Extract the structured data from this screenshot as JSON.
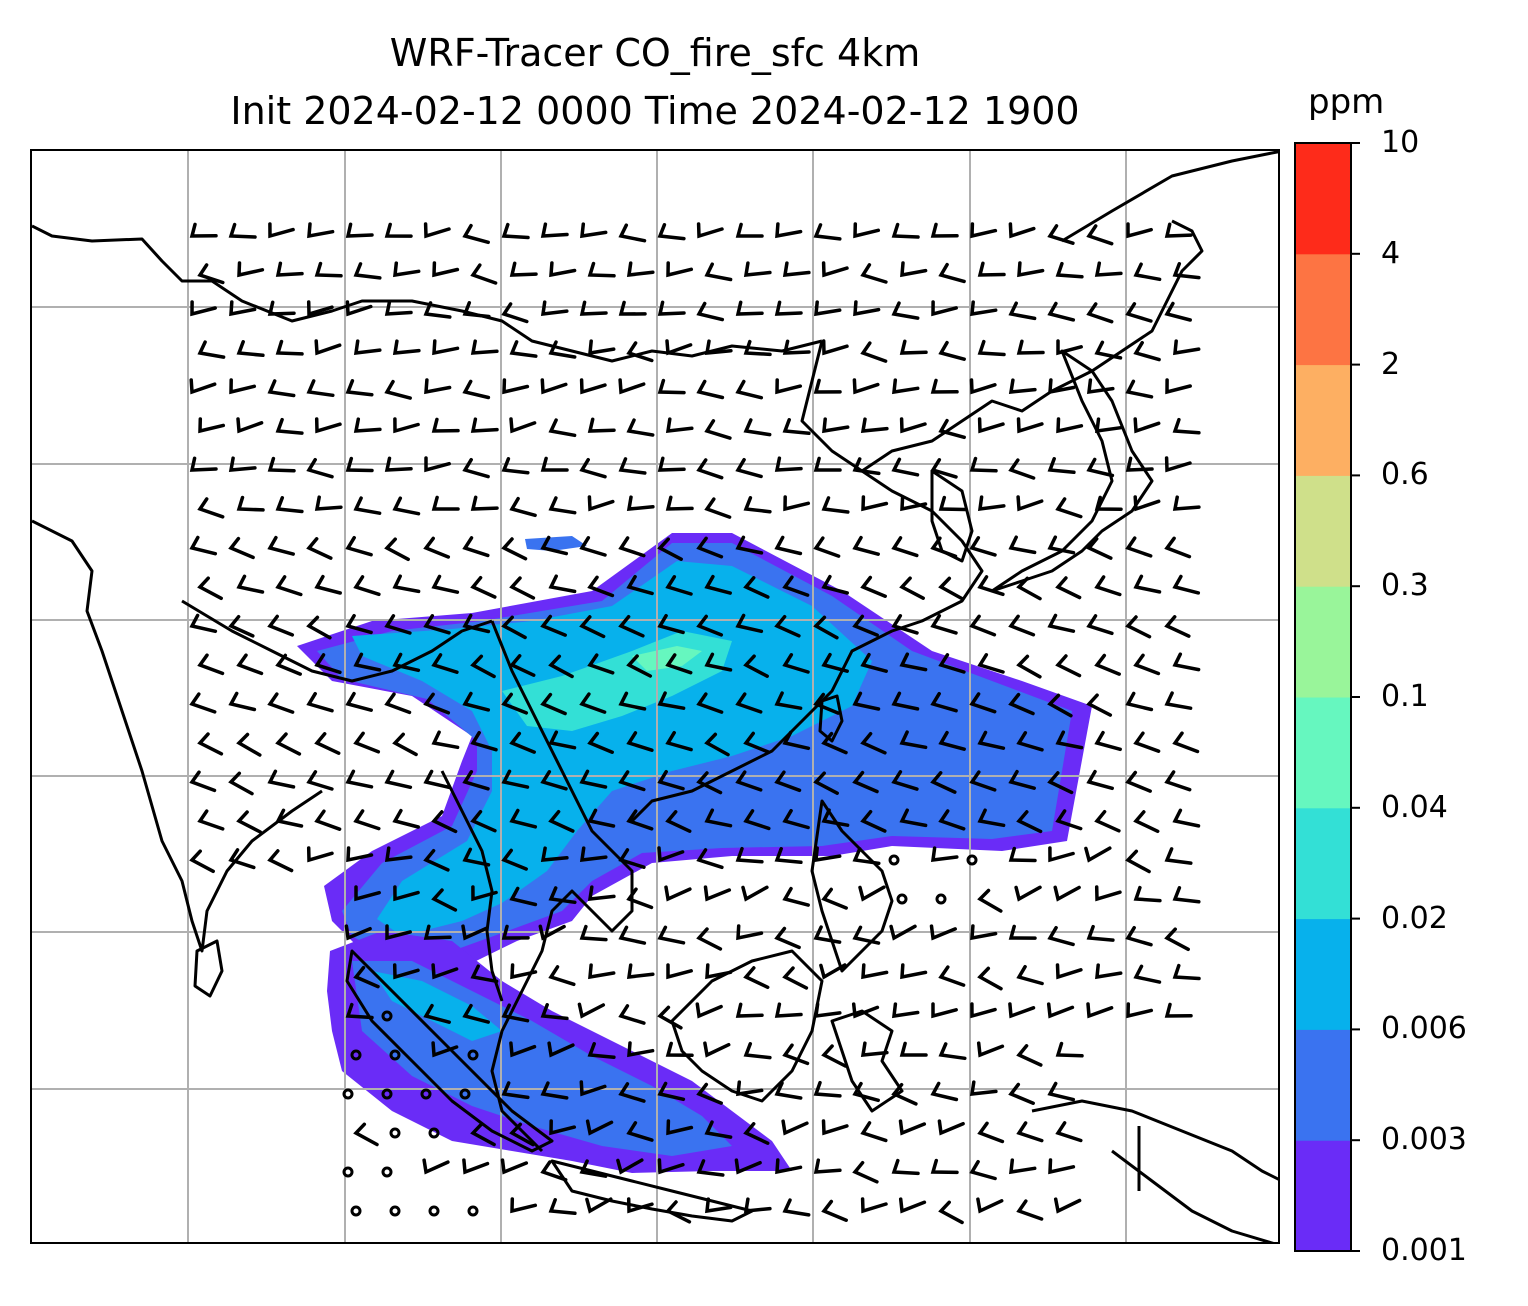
{
  "title": {
    "line1": "WRF-Tracer CO_fire_sfc 4km",
    "line2": "Init 2024-02-12 0000 Time 2024-02-12 1900"
  },
  "colorbar": {
    "unit": "ppm",
    "levels": [
      "0.001",
      "0.003",
      "0.006",
      "0.02",
      "0.04",
      "0.1",
      "0.3",
      "0.6",
      "2",
      "4",
      "10"
    ],
    "colors": [
      "#6a2cf7",
      "#3a73f0",
      "#07b1ec",
      "#33e0d6",
      "#66f7bf",
      "#99f59a",
      "#cfe08a",
      "#fdaf62",
      "#fd7443",
      "#fe2b1a"
    ]
  },
  "map": {
    "gridlines": true,
    "coastline_color": "#000000",
    "grid_color": "#b0b0b0"
  }
}
